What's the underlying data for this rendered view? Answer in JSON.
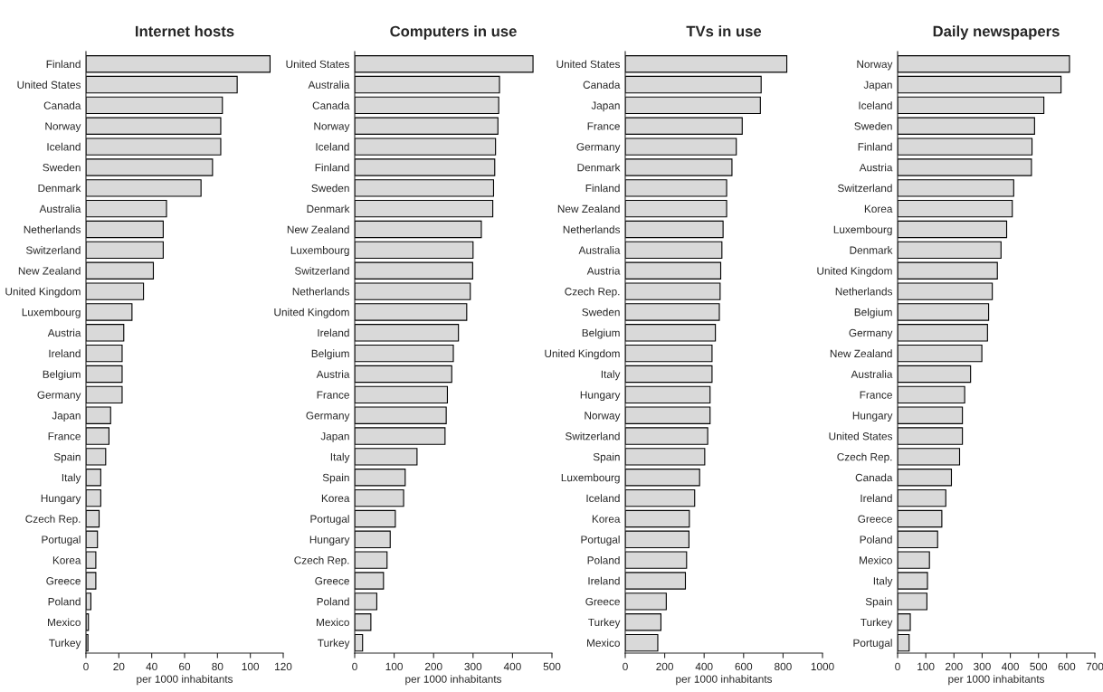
{
  "chart_data": [
    {
      "type": "bar",
      "orientation": "horizontal",
      "title": "Internet hosts",
      "xlabel": "per 1000 inhabitants",
      "categories": [
        "Finland",
        "United States",
        "Canada",
        "Norway",
        "Iceland",
        "Sweden",
        "Denmark",
        "Australia",
        "Netherlands",
        "Switzerland",
        "New Zealand",
        "United Kingdom",
        "Luxembourg",
        "Austria",
        "Ireland",
        "Belgium",
        "Germany",
        "Japan",
        "France",
        "Spain",
        "Italy",
        "Hungary",
        "Czech Rep.",
        "Portugal",
        "Korea",
        "Greece",
        "Poland",
        "Mexico",
        "Turkey"
      ],
      "values": [
        112,
        92,
        83,
        82,
        82,
        77,
        70,
        49,
        47,
        47,
        41,
        35,
        28,
        23,
        22,
        22,
        22,
        15,
        14,
        12,
        9,
        9,
        8,
        7,
        6,
        6,
        3,
        1.5,
        1.2
      ],
      "color": "#d9d9d9",
      "xlim": [
        0,
        120
      ],
      "xticks": [
        0,
        20,
        40,
        60,
        80,
        100,
        120
      ],
      "grid": false
    },
    {
      "type": "bar",
      "orientation": "horizontal",
      "title": "Computers in use",
      "xlabel": "per 1000 inhabitants",
      "categories": [
        "United States",
        "Australia",
        "Canada",
        "Norway",
        "Iceland",
        "Finland",
        "Sweden",
        "Denmark",
        "New Zealand",
        "Luxembourg",
        "Switzerland",
        "Netherlands",
        "United Kingdom",
        "Ireland",
        "Belgium",
        "Austria",
        "France",
        "Germany",
        "Japan",
        "Italy",
        "Spain",
        "Korea",
        "Portugal",
        "Hungary",
        "Czech Rep.",
        "Greece",
        "Poland",
        "Mexico",
        "Turkey"
      ],
      "values": [
        452,
        367,
        365,
        363,
        357,
        355,
        352,
        350,
        321,
        300,
        299,
        293,
        284,
        263,
        250,
        246,
        235,
        232,
        229,
        158,
        128,
        124,
        103,
        90,
        82,
        73,
        56,
        41,
        20
      ],
      "color": "#d9d9d9",
      "xlim": [
        0,
        500
      ],
      "xticks": [
        0,
        100,
        200,
        300,
        400,
        500
      ],
      "grid": false
    },
    {
      "type": "bar",
      "orientation": "horizontal",
      "title": "TVs in use",
      "xlabel": "per 1000 inhabitants",
      "categories": [
        "United States",
        "Canada",
        "Japan",
        "France",
        "Germany",
        "Denmark",
        "Finland",
        "New Zealand",
        "Netherlands",
        "Australia",
        "Austria",
        "Czech Rep.",
        "Sweden",
        "Belgium",
        "United Kingdom",
        "Italy",
        "Hungary",
        "Norway",
        "Switzerland",
        "Spain",
        "Luxembourg",
        "Iceland",
        "Korea",
        "Portugal",
        "Poland",
        "Ireland",
        "Greece",
        "Turkey",
        "Mexico"
      ],
      "values": [
        819,
        689,
        685,
        593,
        563,
        541,
        514,
        514,
        496,
        490,
        484,
        481,
        477,
        457,
        440,
        440,
        430,
        430,
        418,
        403,
        377,
        352,
        325,
        323,
        311,
        305,
        208,
        181,
        165
      ],
      "color": "#d9d9d9",
      "xlim": [
        0,
        1000
      ],
      "xticks": [
        0,
        200,
        400,
        600,
        800,
        1000
      ],
      "grid": false
    },
    {
      "type": "bar",
      "orientation": "horizontal",
      "title": "Daily newspapers",
      "xlabel": "per 1000 inhabitants",
      "categories": [
        "Norway",
        "Japan",
        "Iceland",
        "Sweden",
        "Finland",
        "Austria",
        "Switzerland",
        "Korea",
        "Luxembourg",
        "Denmark",
        "United Kingdom",
        "Netherlands",
        "Belgium",
        "Germany",
        "New Zealand",
        "Australia",
        "France",
        "Hungary",
        "United States",
        "Czech Rep.",
        "Canada",
        "Ireland",
        "Greece",
        "Poland",
        "Mexico",
        "Italy",
        "Spain",
        "Turkey",
        "Portugal"
      ],
      "values": [
        610,
        580,
        519,
        486,
        477,
        475,
        412,
        407,
        387,
        367,
        354,
        336,
        323,
        319,
        299,
        259,
        238,
        230,
        230,
        220,
        191,
        171,
        157,
        142,
        113,
        106,
        104,
        45,
        41
      ],
      "color": "#d9d9d9",
      "xlim": [
        0,
        700
      ],
      "xticks": [
        0,
        100,
        200,
        300,
        400,
        500,
        600,
        700
      ],
      "grid": false
    }
  ]
}
